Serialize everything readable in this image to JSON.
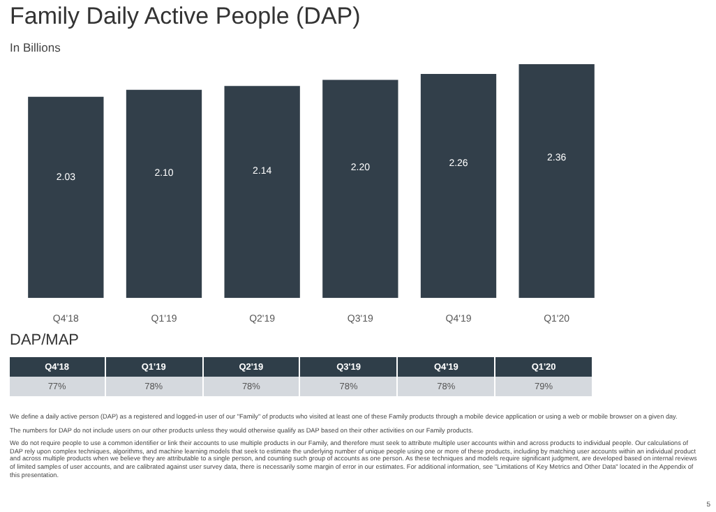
{
  "chart_data": [
    {
      "type": "bar",
      "title": "Family Daily Active People (DAP)",
      "subtitle": "In Billions",
      "categories": [
        "Q4'18",
        "Q1'19",
        "Q2'19",
        "Q3'19",
        "Q4'19",
        "Q1'20"
      ],
      "values": [
        2.03,
        2.1,
        2.14,
        2.2,
        2.26,
        2.36
      ],
      "value_labels": [
        "2.03",
        "2.10",
        "2.14",
        "2.20",
        "2.26",
        "2.36"
      ],
      "color": "#323f4a",
      "grid": false,
      "legend": false,
      "tick_labels": "x"
    },
    {
      "type": "other",
      "title": "DAP/MAP",
      "categories": [
        "Q4'18",
        "Q1'19",
        "Q2'19",
        "Q3'19",
        "Q4'19",
        "Q1'20"
      ],
      "values": [
        77,
        78,
        78,
        78,
        78,
        79
      ],
      "value_labels": [
        "77%",
        "78%",
        "78%",
        "78%",
        "78%",
        "79%"
      ],
      "annotations": [
        "We define a daily active person (DAP) as a registered and logged-in user of our \"Family\" of products who visited at least one of these Family products through a mobile device application or using a web or mobile browser on a given day.",
        "The numbers for DAP do not include users on our other products unless they would otherwise qualify as DAP based on their other activities on our Family products.",
        "We do not require people to use a common identifier or link their accounts to use multiple products in our Family, and therefore must seek to attribute multiple user accounts within and across products to individual people. Our calculations of DAP rely upon complex techniques, algorithms, and machine learning models that seek to estimate the underlying number of unique people using one or more of these products, including by matching user accounts within an individual product and across multiple products when we believe they are attributable to a single person, and counting such group of accounts as one person. As these techniques and models require significant judgment, are developed based on internal reviews of limited samples of user accounts, and are calibrated against user survey data, there is necessarily some margin of error in our estimates. For additional information, see \"Limitations of Key Metrics and Other Data\" located in the Appendix of this presentation.",
        "5"
      ]
    }
  ]
}
